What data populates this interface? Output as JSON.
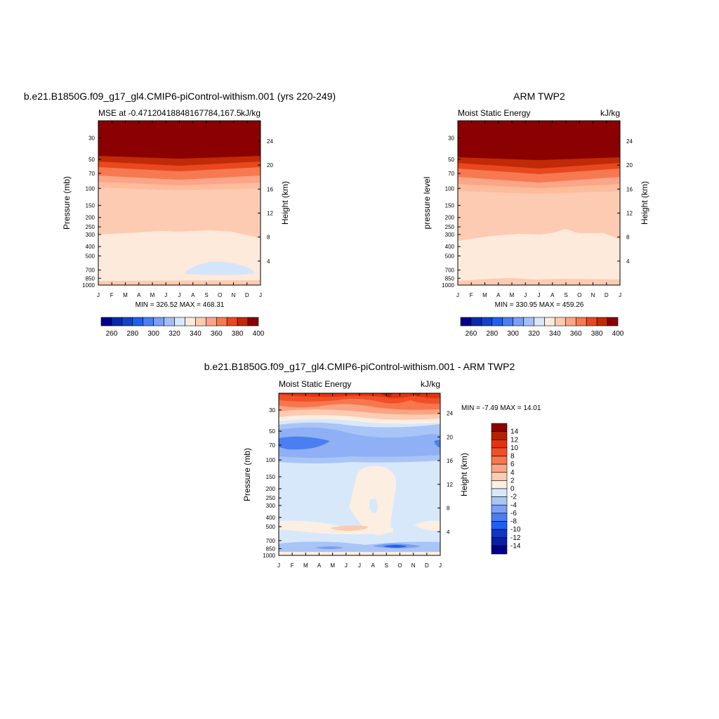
{
  "months": [
    "J",
    "F",
    "M",
    "A",
    "M",
    "J",
    "J",
    "A",
    "S",
    "O",
    "N",
    "D",
    "J"
  ],
  "pressure_ticks": [
    30,
    50,
    70,
    100,
    150,
    200,
    250,
    300,
    400,
    500,
    700,
    850,
    1000
  ],
  "height_ticks": [
    4,
    8,
    12,
    16,
    20,
    24
  ],
  "panel_model": {
    "main_title": "b.e21.B1850G.f09_g17_gl4.CMIP6-piControl-withism.001 (yrs 220-249)",
    "left_title": "MSE at -0.47120418848167784,167.5",
    "right_title": "kJ/kg",
    "ylabel": "Pressure (mb)",
    "y2label": "Height (km)",
    "minmax": "MIN = 326.52 MAX = 468.31"
  },
  "panel_obs": {
    "main_title": "ARM TWP2",
    "left_title": "Moist Static Energy",
    "right_title": "kJ/kg",
    "ylabel": "pressure level",
    "y2label": "Height (km)",
    "minmax": "MIN = 330.95 MAX = 459.26"
  },
  "panel_diff": {
    "main_title": "b.e21.B1850G.f09_g17_gl4.CMIP6-piControl-withism.001 - ARM TWP2",
    "left_title": "Moist Static Energy",
    "right_title": "kJ/kg",
    "ylabel": "Pressure (mb)",
    "y2label": "Height (km)",
    "minmax": "MIN =  -7.49 MAX =  14.01"
  },
  "chart_data": [
    {
      "type": "heatmap",
      "name": "model",
      "x": "month (J..J)",
      "y": "pressure (mb), log scale 20-1000",
      "levels": [
        260,
        270,
        280,
        290,
        300,
        310,
        320,
        330,
        340,
        350,
        360,
        370,
        380,
        390,
        400
      ],
      "colorbar_labels": [
        260,
        280,
        300,
        320,
        340,
        360,
        380,
        400
      ],
      "colors": [
        "#00008b",
        "#0a2aa6",
        "#1442c8",
        "#2060f0",
        "#4a7ef2",
        "#7c9ef4",
        "#a4bff7",
        "#d8e8fb",
        "#feeadb",
        "#fdcbb2",
        "#fca588",
        "#f77950",
        "#e8471f",
        "#c02a06",
        "#8b0000"
      ],
      "min": 326.52,
      "max": 468.31
    },
    {
      "type": "heatmap",
      "name": "obs",
      "x": "month (J..J)",
      "y": "pressure level (mb), log scale 20-1000",
      "levels": [
        260,
        270,
        280,
        290,
        300,
        310,
        320,
        330,
        340,
        350,
        360,
        370,
        380,
        390,
        400
      ],
      "colorbar_labels": [
        260,
        280,
        300,
        320,
        340,
        360,
        380,
        400
      ],
      "colors": [
        "#00008b",
        "#0a2aa6",
        "#1442c8",
        "#2060f0",
        "#4a7ef2",
        "#7c9ef4",
        "#a4bff7",
        "#d8e8fb",
        "#feeadb",
        "#fdcbb2",
        "#fca588",
        "#f77950",
        "#e8471f",
        "#c02a06",
        "#8b0000"
      ],
      "min": 330.95,
      "max": 459.26
    },
    {
      "type": "heatmap",
      "name": "difference",
      "x": "month (J..J)",
      "y": "pressure (mb), log scale 20-1000",
      "colorbar_labels": [
        14,
        12,
        10,
        8,
        6,
        4,
        2,
        0,
        -2,
        -4,
        -6,
        -8,
        -10,
        -12,
        -14
      ],
      "colors": [
        "#8b0000",
        "#b22204",
        "#e0340f",
        "#f05028",
        "#f8764e",
        "#fba483",
        "#fdcbb2",
        "#fdeee2",
        "#d8e8fb",
        "#a9c5f7",
        "#7c9ef4",
        "#4a7ef2",
        "#2060f0",
        "#1036c0",
        "#0a1ea0",
        "#00008b"
      ],
      "min": -7.49,
      "max": 14.01
    }
  ]
}
